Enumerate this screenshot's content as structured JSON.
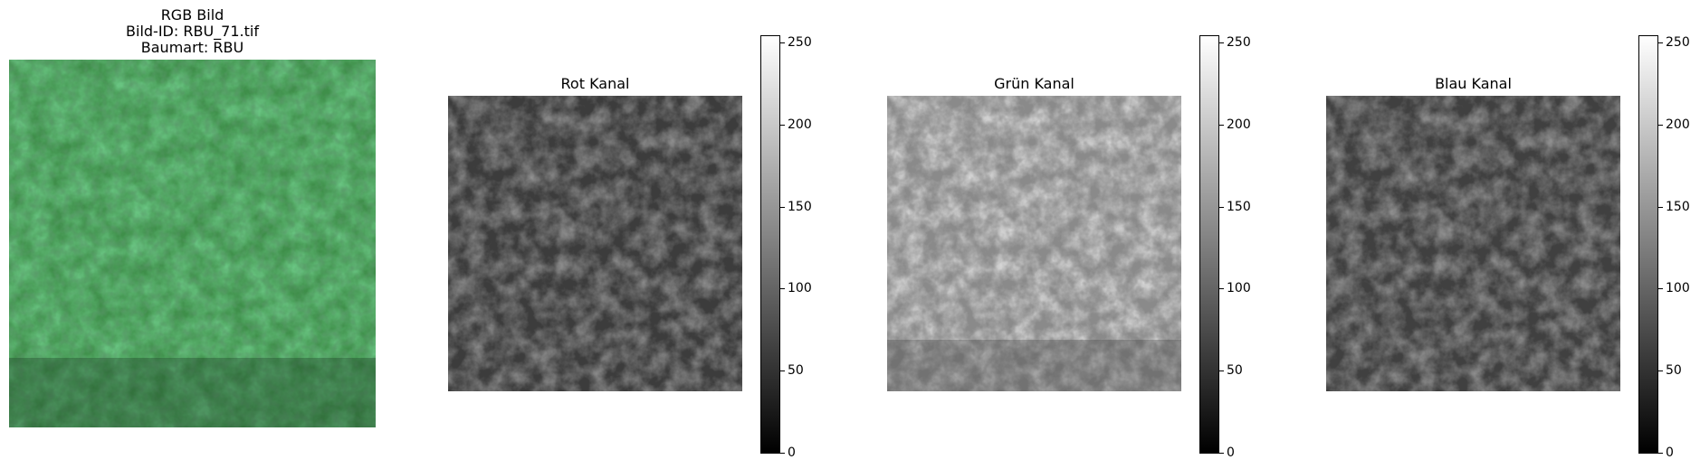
{
  "rgb_panel": {
    "title_lines": [
      "RGB Bild",
      "Bild-ID: RBU_71.tif",
      "Baumart: RBU"
    ]
  },
  "channels": [
    {
      "title": "Rot Kanal",
      "level": 0.24
    },
    {
      "title": "Grün Kanal",
      "level": 0.58
    },
    {
      "title": "Blau Kanal",
      "level": 0.26
    }
  ],
  "colorbar": {
    "ticks": [
      "0",
      "50",
      "100",
      "150",
      "200",
      "250"
    ],
    "min": 0,
    "max": 255
  },
  "colors": {
    "rgb_base": "#3f8f4a",
    "rgb_light": "#5cc06a",
    "rgb_dark": "#234f2b"
  }
}
